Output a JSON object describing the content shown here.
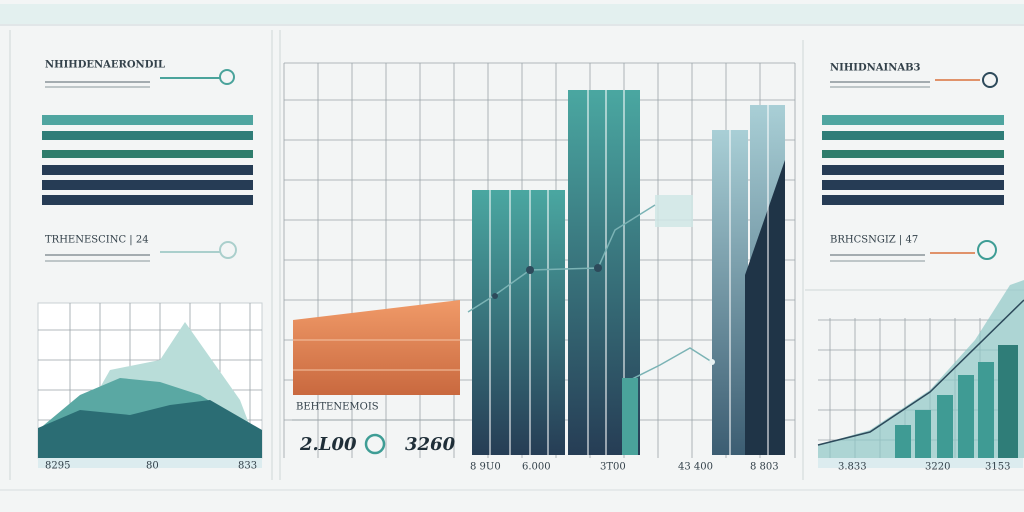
{
  "left_panel": {
    "title": "NHIHDENAERONDIL",
    "subtitle": "TRHENESCINC | 24",
    "axis_labels": [
      "8295",
      "80",
      "833"
    ]
  },
  "center_panel": {
    "caption": "BEHTENEMOIS",
    "value_left": "2.L00",
    "value_right": "3260",
    "axis_labels": [
      "8 9U0",
      "6.000",
      "3T00",
      "43 400",
      "8 803"
    ]
  },
  "right_panel": {
    "title": "NIHIDNAINAB3",
    "subtitle": "BRHCSNGIZ | 47",
    "axis_labels": [
      "3.833",
      "3220",
      "3153"
    ]
  }
}
